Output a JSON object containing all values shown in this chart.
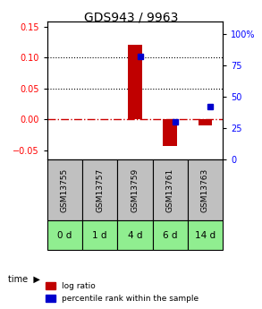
{
  "title": "GDS943 / 9963",
  "samples": [
    "GSM13755",
    "GSM13757",
    "GSM13759",
    "GSM13761",
    "GSM13763"
  ],
  "time_labels": [
    "0 d",
    "1 d",
    "4 d",
    "6 d",
    "14 d"
  ],
  "log_ratios": [
    0.0,
    0.0,
    0.121,
    -0.043,
    -0.009
  ],
  "percentile_ranks": [
    null,
    null,
    82.0,
    30.0,
    42.0
  ],
  "ylim_left": [
    -0.065,
    0.158
  ],
  "ylim_right": [
    0,
    110
  ],
  "yticks_left": [
    -0.05,
    0.0,
    0.05,
    0.1,
    0.15
  ],
  "yticks_right": [
    0,
    25,
    50,
    75,
    100
  ],
  "ytick_labels_right": [
    "0",
    "25",
    "50",
    "75",
    "100%"
  ],
  "bar_color": "#c00000",
  "dot_color": "#0000cc",
  "zero_line_color": "#cc0000",
  "grid_color": "#000000",
  "sample_bg_color": "#c0c0c0",
  "time_bg_color": "#90ee90",
  "time_label_color": "#000000",
  "bar_width": 0.4,
  "legend_labels": [
    "log ratio",
    "percentile rank within the sample"
  ]
}
